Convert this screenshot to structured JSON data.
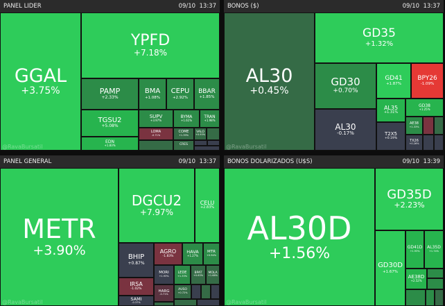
{
  "watermark": "@RavaBursatil",
  "panels": [
    {
      "title": "PANEL LIDER",
      "date": "09/10",
      "time": "13:37",
      "tiles": [
        {
          "s": "GGAL",
          "p": "+3.75%"
        },
        {
          "s": "YPFD",
          "p": "+7.18%"
        },
        {
          "s": "PAMP",
          "p": "+2.33%"
        },
        {
          "s": "BMA",
          "p": "+1.08%"
        },
        {
          "s": "CEPU",
          "p": "+2.92%"
        },
        {
          "s": "BBAR",
          "p": "+1.85%"
        },
        {
          "s": "TGSU2",
          "p": "+5.08%"
        },
        {
          "s": "SUPV",
          "p": "+3.97%"
        },
        {
          "s": "BYMA",
          "p": "+1.61%"
        },
        {
          "s": "TRAN",
          "p": "+1.98%"
        },
        {
          "s": "LOMA",
          "p": "-0.71%"
        },
        {
          "s": "EDN",
          "p": "+1.83%"
        },
        {
          "s": "COME",
          "p": "+1.39%"
        },
        {
          "s": "VALO",
          "p": "+0.93%"
        },
        {
          "s": "CRES",
          "p": "+1.72%"
        },
        {
          "s": "TECO2",
          "p": ""
        },
        {
          "s": "TXAR",
          "p": ""
        },
        {
          "s": "ALUA",
          "p": ""
        }
      ]
    },
    {
      "title": "BONOS ($)",
      "date": "09/10",
      "time": "13:37",
      "tiles": [
        {
          "s": "AL30",
          "p": "+0.45%"
        },
        {
          "s": "GD35",
          "p": "+1.32%"
        },
        {
          "s": "GD30",
          "p": "+0.70%"
        },
        {
          "s": "GD41",
          "p": "+1.87%"
        },
        {
          "s": "BPY26",
          "p": "-1.09%"
        },
        {
          "s": "AL30",
          "p": "-0.17%"
        },
        {
          "s": "AL35",
          "p": "+1.31%"
        },
        {
          "s": "GD38",
          "p": "+1.25%"
        },
        {
          "s": "T2X5",
          "p": "+0.19%"
        },
        {
          "s": "AE38",
          "p": "+1.33%"
        },
        {
          "s": "TX26",
          "p": "+0.26%"
        },
        {
          "s": "TZXD5",
          "p": ""
        },
        {
          "s": "AL41",
          "p": ""
        },
        {
          "s": "GD46",
          "p": ""
        },
        {
          "s": "AL29",
          "p": ""
        }
      ]
    },
    {
      "title": "PANEL GENERAL",
      "date": "09/10",
      "time": "13:37",
      "tiles": [
        {
          "s": "METR",
          "p": "+3.90%"
        },
        {
          "s": "DGCU2",
          "p": "+7.97%"
        },
        {
          "s": "CELU",
          "p": "+2.83%"
        },
        {
          "s": "BHIP",
          "p": "+0.87%"
        },
        {
          "s": "AGRO",
          "p": "-1.83%"
        },
        {
          "s": "HAVA",
          "p": "+1.27%"
        },
        {
          "s": "MTR",
          "p": "+0.94%"
        },
        {
          "s": "IRSA",
          "p": "-1.02%"
        },
        {
          "s": "MORI",
          "p": "+1.93%"
        },
        {
          "s": "LEDE",
          "p": "+1.33%"
        },
        {
          "s": "BPAT",
          "p": "+0.63%"
        },
        {
          "s": "MOLA",
          "p": "+1.68%"
        },
        {
          "s": "HARG",
          "p": "-0.71%"
        },
        {
          "s": "AUSO",
          "p": "+0.72%"
        },
        {
          "s": "SAMI",
          "p": "-0.37%"
        },
        {
          "s": "MOLI",
          "p": "+1.21%"
        },
        {
          "s": "",
          "p": ""
        },
        {
          "s": "",
          "p": ""
        },
        {
          "s": "",
          "p": ""
        },
        {
          "s": "",
          "p": ""
        },
        {
          "s": "",
          "p": ""
        }
      ]
    },
    {
      "title": "BONOS DOLARIZADOS (U$S)",
      "date": "09/10",
      "time": "13:39",
      "tiles": [
        {
          "s": "AL30D",
          "p": "+1.56%"
        },
        {
          "s": "GD35D",
          "p": "+2.23%"
        },
        {
          "s": "GD30D",
          "p": "+1.67%"
        },
        {
          "s": "GD41D",
          "p": "+1.93%"
        },
        {
          "s": "AL35D",
          "p": "+1.74%"
        },
        {
          "s": "AE38D",
          "p": "+2.52%"
        },
        {
          "s": "",
          "p": ""
        },
        {
          "s": "",
          "p": ""
        },
        {
          "s": "",
          "p": ""
        },
        {
          "s": "",
          "p": ""
        },
        {
          "s": "",
          "p": ""
        }
      ]
    }
  ]
}
